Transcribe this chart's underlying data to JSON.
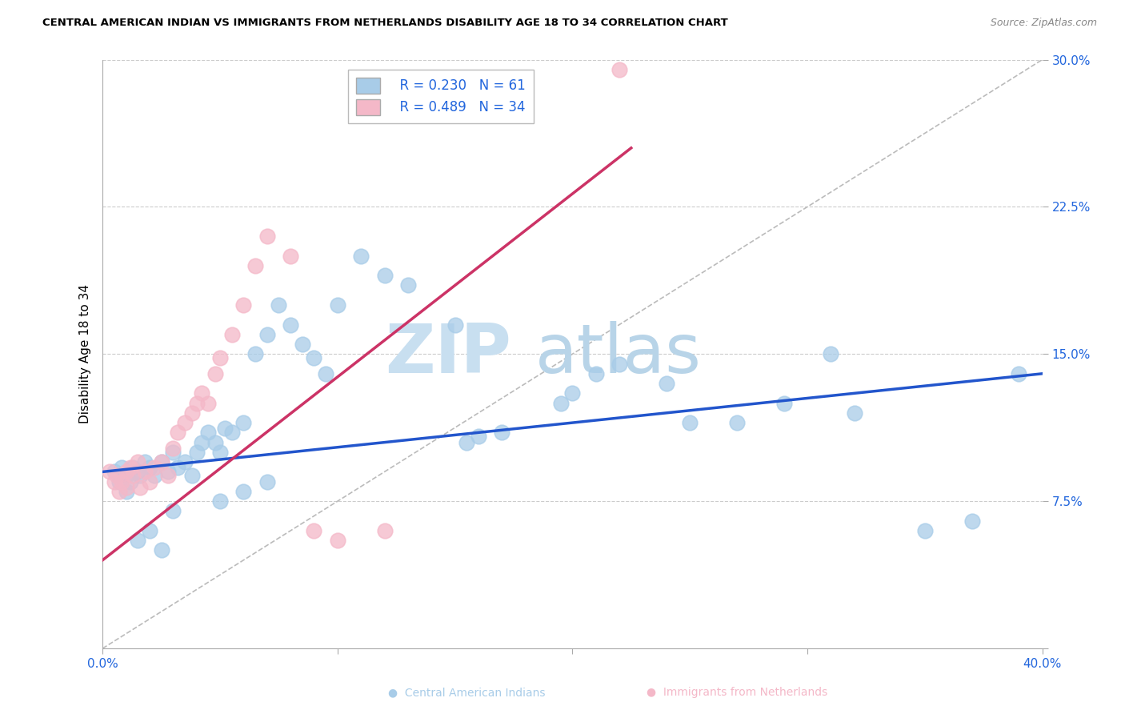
{
  "title": "CENTRAL AMERICAN INDIAN VS IMMIGRANTS FROM NETHERLANDS DISABILITY AGE 18 TO 34 CORRELATION CHART",
  "source": "Source: ZipAtlas.com",
  "ylabel": "Disability Age 18 to 34",
  "ytick_labels": [
    "",
    "7.5%",
    "15.0%",
    "22.5%",
    "30.0%"
  ],
  "ytick_values": [
    0.0,
    0.075,
    0.15,
    0.225,
    0.3
  ],
  "xlim": [
    0.0,
    0.4
  ],
  "ylim": [
    0.0,
    0.3
  ],
  "legend_r1": "R = 0.230",
  "legend_n1": "N = 61",
  "legend_r2": "R = 0.489",
  "legend_n2": "N = 34",
  "watermark_zip": "ZIP",
  "watermark_atlas": "atlas",
  "blue_color": "#a8cce8",
  "pink_color": "#f4b8c8",
  "line_blue": "#2255cc",
  "line_pink": "#cc3366",
  "ref_line_color": "#bbbbbb",
  "blue_line_x": [
    0.0,
    0.4
  ],
  "blue_line_y": [
    0.09,
    0.14
  ],
  "pink_line_x": [
    0.0,
    0.225
  ],
  "pink_line_y": [
    0.045,
    0.255
  ],
  "ref_line_x": [
    0.0,
    0.4
  ],
  "ref_line_y": [
    0.0,
    0.3
  ],
  "blue_scatter_x": [
    0.005,
    0.007,
    0.008,
    0.01,
    0.01,
    0.012,
    0.013,
    0.015,
    0.016,
    0.018,
    0.02,
    0.022,
    0.025,
    0.028,
    0.03,
    0.032,
    0.035,
    0.038,
    0.04,
    0.042,
    0.045,
    0.048,
    0.05,
    0.052,
    0.055,
    0.06,
    0.065,
    0.07,
    0.075,
    0.08,
    0.085,
    0.09,
    0.095,
    0.1,
    0.11,
    0.12,
    0.13,
    0.15,
    0.155,
    0.16,
    0.17,
    0.195,
    0.2,
    0.21,
    0.22,
    0.24,
    0.25,
    0.27,
    0.29,
    0.31,
    0.32,
    0.35,
    0.37,
    0.39,
    0.03,
    0.05,
    0.06,
    0.07,
    0.02,
    0.015,
    0.025
  ],
  "blue_scatter_y": [
    0.09,
    0.085,
    0.092,
    0.088,
    0.08,
    0.085,
    0.092,
    0.09,
    0.088,
    0.095,
    0.092,
    0.088,
    0.095,
    0.09,
    0.1,
    0.092,
    0.095,
    0.088,
    0.1,
    0.105,
    0.11,
    0.105,
    0.1,
    0.112,
    0.11,
    0.115,
    0.15,
    0.16,
    0.175,
    0.165,
    0.155,
    0.148,
    0.14,
    0.175,
    0.2,
    0.19,
    0.185,
    0.165,
    0.105,
    0.108,
    0.11,
    0.125,
    0.13,
    0.14,
    0.145,
    0.135,
    0.115,
    0.115,
    0.125,
    0.15,
    0.12,
    0.06,
    0.065,
    0.14,
    0.07,
    0.075,
    0.08,
    0.085,
    0.06,
    0.055,
    0.05
  ],
  "pink_scatter_x": [
    0.003,
    0.005,
    0.006,
    0.007,
    0.008,
    0.01,
    0.01,
    0.012,
    0.013,
    0.015,
    0.016,
    0.018,
    0.02,
    0.022,
    0.025,
    0.028,
    0.03,
    0.032,
    0.035,
    0.038,
    0.04,
    0.042,
    0.045,
    0.048,
    0.05,
    0.055,
    0.06,
    0.065,
    0.07,
    0.08,
    0.09,
    0.1,
    0.12,
    0.22
  ],
  "pink_scatter_y": [
    0.09,
    0.085,
    0.088,
    0.08,
    0.085,
    0.09,
    0.082,
    0.092,
    0.088,
    0.095,
    0.082,
    0.09,
    0.085,
    0.092,
    0.095,
    0.088,
    0.102,
    0.11,
    0.115,
    0.12,
    0.125,
    0.13,
    0.125,
    0.14,
    0.148,
    0.16,
    0.175,
    0.195,
    0.21,
    0.2,
    0.06,
    0.055,
    0.06,
    0.295
  ]
}
